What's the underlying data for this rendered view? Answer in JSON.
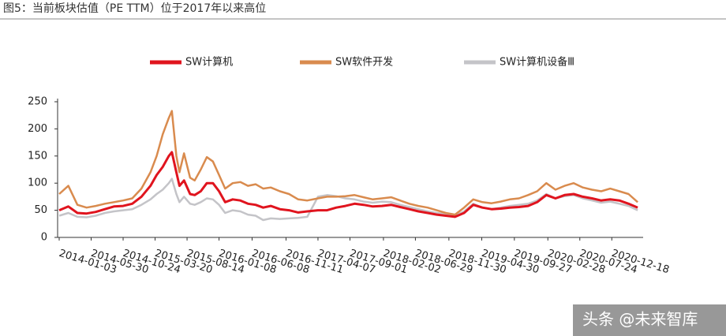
{
  "chart_data": {
    "type": "line",
    "title": "图5：当前板块估值（PE TTM）位于2017年以来高位",
    "watermark": "头条 @未来智库",
    "x": [
      "2014-01-03",
      "2014-02-14",
      "2014-03-28",
      "2014-05-09",
      "2014-06-20",
      "2014-08-01",
      "2014-09-12",
      "2014-10-24",
      "2014-12-05",
      "2015-01-16",
      "2015-02-27",
      "2015-03-27",
      "2015-04-24",
      "2015-05-22",
      "2015-06-05",
      "2015-06-26",
      "2015-07-10",
      "2015-07-31",
      "2015-08-28",
      "2015-09-18",
      "2015-10-16",
      "2015-11-13",
      "2015-12-11",
      "2016-01-08",
      "2016-02-05",
      "2016-03-11",
      "2016-04-15",
      "2016-05-20",
      "2016-06-24",
      "2016-07-29",
      "2016-09-02",
      "2016-10-14",
      "2016-11-25",
      "2017-01-06",
      "2017-02-17",
      "2017-04-07",
      "2017-05-19",
      "2017-06-30",
      "2017-08-11",
      "2017-09-22",
      "2017-11-03",
      "2017-12-15",
      "2018-01-26",
      "2018-03-09",
      "2018-04-20",
      "2018-06-01",
      "2018-07-13",
      "2018-08-24",
      "2018-10-05",
      "2018-11-16",
      "2018-12-28",
      "2019-02-08",
      "2019-03-22",
      "2019-05-03",
      "2019-06-14",
      "2019-07-26",
      "2019-09-06",
      "2019-10-18",
      "2019-11-29",
      "2020-01-10",
      "2020-02-21",
      "2020-04-03",
      "2020-05-15",
      "2020-06-26",
      "2020-08-07",
      "2020-09-18",
      "2020-10-30",
      "2020-12-11",
      "2021-01-22",
      "2021-03-05",
      "2021-04-16"
    ],
    "series": [
      {
        "name": "SW计算机",
        "color": "#e0141e",
        "values": [
          50,
          57,
          45,
          44,
          47,
          52,
          57,
          58,
          62,
          75,
          95,
          115,
          130,
          150,
          157,
          120,
          95,
          105,
          80,
          78,
          85,
          100,
          100,
          85,
          65,
          70,
          68,
          62,
          60,
          55,
          58,
          52,
          50,
          46,
          48,
          50,
          50,
          55,
          58,
          62,
          60,
          57,
          58,
          60,
          56,
          52,
          48,
          45,
          42,
          40,
          38,
          45,
          60,
          55,
          52,
          53,
          55,
          56,
          58,
          65,
          78,
          72,
          78,
          80,
          75,
          72,
          68,
          70,
          68,
          62,
          55
        ]
      },
      {
        "name": "SW软件开发",
        "color": "#d98b4e",
        "values": [
          80,
          95,
          60,
          55,
          58,
          62,
          65,
          68,
          72,
          90,
          120,
          150,
          190,
          220,
          233,
          150,
          120,
          155,
          110,
          105,
          125,
          148,
          140,
          115,
          90,
          100,
          102,
          95,
          98,
          90,
          92,
          85,
          80,
          70,
          68,
          72,
          75,
          75,
          76,
          78,
          74,
          70,
          72,
          74,
          68,
          62,
          58,
          55,
          50,
          45,
          42,
          55,
          70,
          65,
          63,
          66,
          70,
          72,
          78,
          85,
          100,
          88,
          95,
          100,
          92,
          88,
          85,
          90,
          85,
          80,
          65
        ]
      },
      {
        "name": "SW计算机设备Ⅲ",
        "color": "#c4c4c8",
        "values": [
          40,
          45,
          38,
          37,
          40,
          45,
          48,
          50,
          52,
          60,
          70,
          80,
          88,
          100,
          108,
          80,
          65,
          75,
          62,
          60,
          65,
          72,
          70,
          60,
          45,
          50,
          48,
          42,
          40,
          32,
          35,
          34,
          35,
          36,
          38,
          75,
          78,
          76,
          72,
          70,
          66,
          64,
          66,
          65,
          60,
          56,
          52,
          48,
          45,
          43,
          40,
          48,
          62,
          55,
          52,
          55,
          58,
          60,
          62,
          68,
          80,
          72,
          76,
          78,
          72,
          68,
          64,
          66,
          62,
          58,
          50
        ]
      }
    ],
    "xlim": [
      "2014-01-03",
      "2021-04-23"
    ],
    "xticks": [
      "2014-01-03",
      "2014-05-30",
      "2014-10-24",
      "2015-03-20",
      "2015-08-14",
      "2016-01-08",
      "2016-06-08",
      "2016-11-11",
      "2017-04-07",
      "2017-09-01",
      "2018-02-02",
      "2018-06-29",
      "2018-11-30",
      "2019-04-30",
      "2019-09-27",
      "2020-02-28",
      "2020-07-24",
      "2020-12-18"
    ],
    "ylim": [
      0,
      250
    ],
    "yticks": [
      0,
      50,
      100,
      150,
      200,
      250
    ],
    "grid": false
  }
}
